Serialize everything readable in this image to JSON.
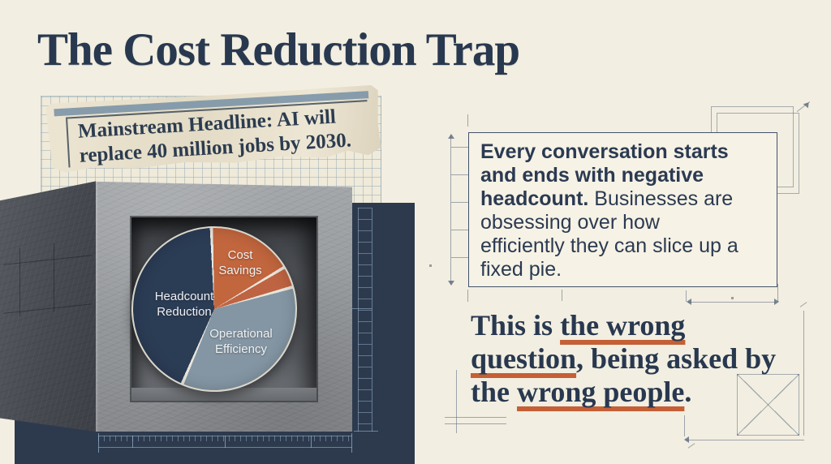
{
  "slide": {
    "title": "The Cost Reduction Trap"
  },
  "clipping": {
    "lines": [
      "Mainstream Headline: AI will",
      "replace 40 million jobs by 2030."
    ]
  },
  "chart_data": {
    "type": "pie",
    "title": "",
    "legend_position": "none",
    "segments": [
      {
        "label": "Cost Savings",
        "value_pct": 17,
        "color": "#c2663e"
      },
      {
        "label": "",
        "value_pct": 4.2,
        "color": "#bf6442"
      },
      {
        "label": "Operational Efficiency",
        "value_pct": 35.8,
        "color": "#8496a4"
      },
      {
        "label": "Headcount Reduction",
        "value_pct": 43,
        "color": "#2b3c55"
      }
    ],
    "divider_color": "#e8e5dc",
    "label_color": "#eff1f2"
  },
  "callout": {
    "lines": [
      {
        "bold": "Every conversation starts",
        "rest": ""
      },
      {
        "bold": "and ends with negative",
        "rest": ""
      },
      {
        "bold": "headcount.",
        "rest": " Businesses are"
      },
      {
        "bold": "",
        "rest": "obsessing over how"
      },
      {
        "bold": "",
        "rest": "efficiently they can slice up a"
      },
      {
        "bold": "",
        "rest": "fixed pie."
      }
    ]
  },
  "quote": {
    "lines": [
      [
        {
          "text": "This is ",
          "underline": false
        },
        {
          "text": "the wrong",
          "underline": true
        }
      ],
      [
        {
          "text": "question",
          "underline": true
        },
        {
          "text": ", being asked by",
          "underline": false
        }
      ],
      [
        {
          "text": "the ",
          "underline": false
        },
        {
          "text": "wrong people",
          "underline": true
        },
        {
          "text": ".",
          "underline": false
        }
      ]
    ]
  },
  "colors": {
    "background": "#f2eee1",
    "navy_panel": "#2d3a4d",
    "title_navy": "#28384f",
    "accent_orange": "#c45f36",
    "newsprint_bar": "#7e96a8"
  }
}
